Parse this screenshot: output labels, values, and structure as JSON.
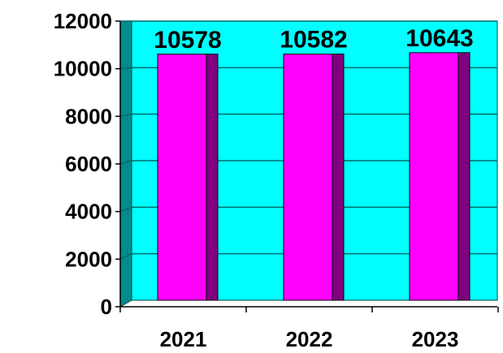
{
  "chart_data": {
    "type": "bar",
    "title": "",
    "xlabel": "",
    "ylabel": "",
    "categories": [
      "2021",
      "2022",
      "2023"
    ],
    "values": [
      10578,
      10582,
      10643
    ],
    "data_labels": [
      "10578",
      "10582",
      "10643"
    ],
    "ylim": [
      0,
      12000
    ],
    "yticks": [
      0,
      2000,
      4000,
      6000,
      8000,
      10000,
      12000
    ],
    "ytick_labels": [
      "0",
      "2000",
      "4000",
      "6000",
      "8000",
      "10000",
      "12000"
    ],
    "grid": true,
    "legend": "none",
    "style": "3d-column"
  },
  "colors": {
    "plot_background": "#00FFFF",
    "back_wall_side": "#008B8B",
    "bar_front": "#FF00FF",
    "bar_side": "#800080",
    "gridline": "#006B6B",
    "text": "#000000"
  }
}
